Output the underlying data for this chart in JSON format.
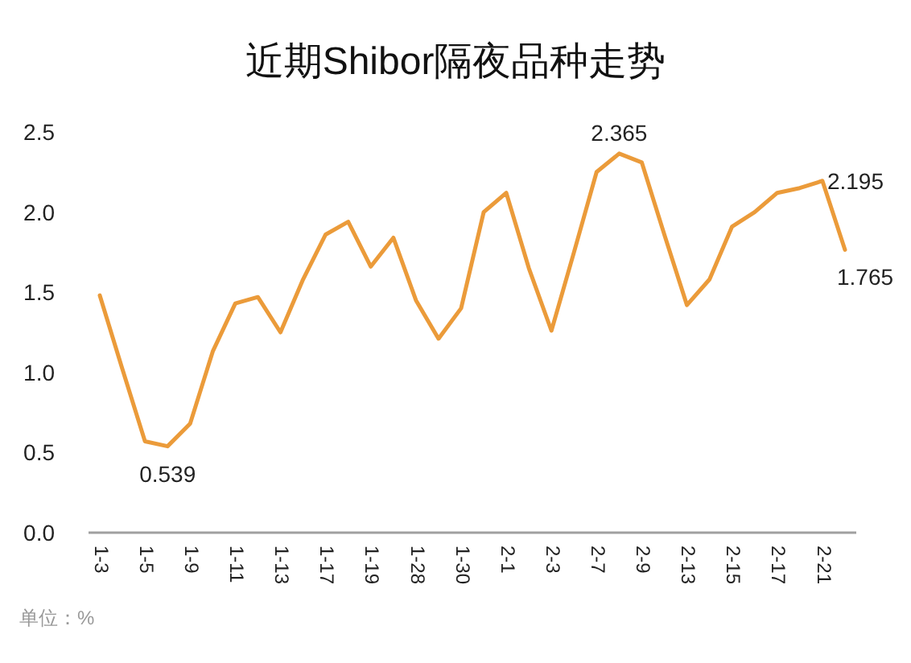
{
  "chart_data": {
    "type": "line",
    "title": "近期Shibor隔夜品种走势",
    "categories": [
      "1-3",
      null,
      "1-5",
      null,
      "1-9",
      null,
      "1-11",
      null,
      "1-13",
      null,
      "1-17",
      null,
      "1-19",
      null,
      "1-28",
      null,
      "1-30",
      null,
      "2-1",
      null,
      "2-3",
      null,
      "2-7",
      null,
      "2-9",
      null,
      "2-13",
      null,
      "2-15",
      null,
      "2-17",
      null,
      "2-21",
      null
    ],
    "series": [
      {
        "color": "#eb9b3a",
        "values": [
          1.48,
          1.02,
          0.57,
          0.539,
          0.68,
          1.13,
          1.43,
          1.47,
          1.25,
          1.58,
          1.86,
          1.94,
          1.66,
          1.84,
          1.45,
          1.21,
          1.4,
          2.0,
          2.12,
          1.65,
          1.26,
          1.75,
          2.25,
          2.365,
          2.31,
          1.86,
          1.42,
          1.58,
          1.91,
          2.0,
          2.12,
          2.15,
          2.195,
          1.765
        ],
        "value_labels": [
          null,
          null,
          null,
          "0.539",
          null,
          null,
          null,
          null,
          null,
          null,
          null,
          null,
          null,
          null,
          null,
          null,
          null,
          null,
          null,
          null,
          null,
          null,
          null,
          "2.365",
          null,
          null,
          null,
          null,
          null,
          null,
          null,
          null,
          "2.195",
          "1.765"
        ]
      }
    ],
    "ylim": [
      0,
      2.5
    ],
    "yticks": [
      {
        "value": 0,
        "label": "0.0"
      },
      0.5,
      {
        "value": 1,
        "label": "1.0"
      },
      1.5,
      {
        "value": 2,
        "label": "2.0"
      },
      2.5
    ],
    "annotations": [
      "单位：%"
    ]
  }
}
